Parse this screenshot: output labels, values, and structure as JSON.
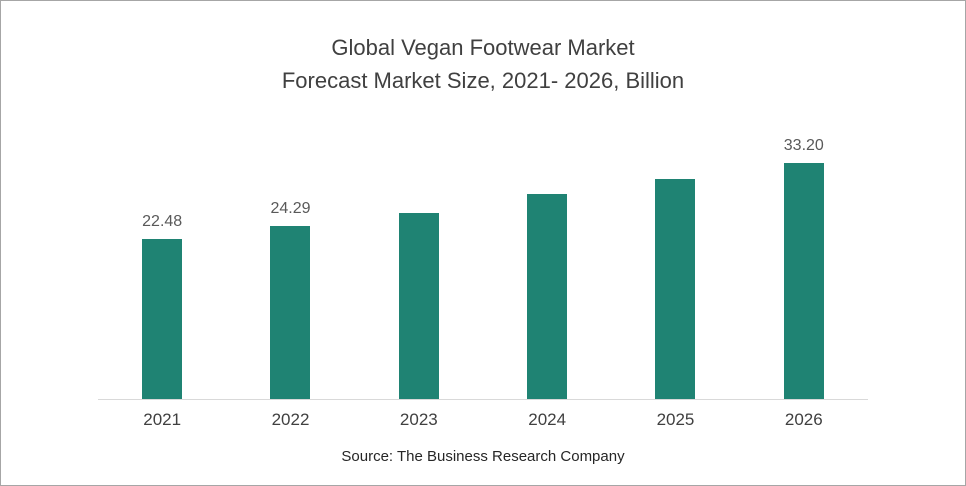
{
  "chart_data": {
    "type": "bar",
    "title_line1": "Global Vegan Footwear Market",
    "title_line2": "Forecast Market Size, 2021- 2026, Billion",
    "categories": [
      "2021",
      "2022",
      "2023",
      "2024",
      "2025",
      "2026"
    ],
    "values": [
      22.48,
      24.29,
      26.2,
      28.9,
      30.9,
      33.2
    ],
    "data_labels": [
      "22.48",
      "24.29",
      "",
      "",
      "",
      "33.20"
    ],
    "bar_color": "#1F8373",
    "ylim": [
      0,
      36
    ],
    "grid": false,
    "legend": false,
    "xlabel": "",
    "ylabel": "",
    "source": "Source: The Business Research Company"
  }
}
